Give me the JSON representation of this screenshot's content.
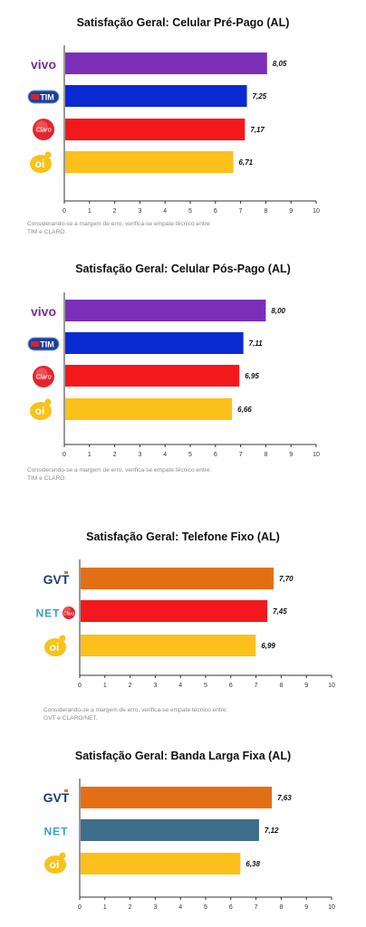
{
  "colors": {
    "vivo": "#7b2fb8",
    "tim": "#0a2ad2",
    "claro": "#f2181c",
    "oi": "#fbc01a",
    "gvt": "#e36f14",
    "net": "#3e6e8a",
    "axis": "#333333",
    "tick_label": "#333333",
    "value_label": "#111111"
  },
  "chart_data": [
    {
      "type": "bar",
      "orientation": "horizontal",
      "title": "Satisfação Geral: Celular Pré-Pago (AL)",
      "categories": [
        "vivo",
        "TIM",
        "Claro",
        "oi"
      ],
      "values": [
        8.05,
        7.25,
        7.17,
        6.71
      ],
      "value_labels": [
        "8,05",
        "7,25",
        "7,17",
        "6,71"
      ],
      "xlim": [
        0,
        10
      ],
      "ticks": [
        "0",
        "1",
        "2",
        "3",
        "4",
        "5",
        "6",
        "7",
        "8",
        "9",
        "10"
      ],
      "grid": false,
      "note": [
        "Considerando-se a margem de erro, verifica-se empate técnico entre:",
        "TIM e  CLARO."
      ]
    },
    {
      "type": "bar",
      "orientation": "horizontal",
      "title": "Satisfação Geral: Celular Pós-Pago (AL)",
      "categories": [
        "vivo",
        "TIM",
        "Claro",
        "oi"
      ],
      "values": [
        8.0,
        7.11,
        6.95,
        6.66
      ],
      "value_labels": [
        "8,00",
        "7,11",
        "6,95",
        "6,66"
      ],
      "xlim": [
        0,
        10
      ],
      "ticks": [
        "0",
        "1",
        "2",
        "3",
        "4",
        "5",
        "6",
        "7",
        "8",
        "9",
        "10"
      ],
      "grid": false,
      "note": [
        "Considerando-se a margem de erro, verifica-se empate técnico entre:",
        "TIM e  CLARO."
      ]
    },
    {
      "type": "bar",
      "orientation": "horizontal",
      "title": "Satisfação Geral: Telefone Fixo (AL)",
      "categories": [
        "GVT",
        "NET Claro",
        "oi"
      ],
      "values": [
        7.7,
        7.45,
        6.99
      ],
      "value_labels": [
        "7,70",
        "7,45",
        "6,99"
      ],
      "xlim": [
        0,
        10
      ],
      "ticks": [
        "0",
        "1",
        "2",
        "3",
        "4",
        "5",
        "6",
        "7",
        "8",
        "9",
        "10"
      ],
      "grid": false,
      "note": [
        "Considerando-se a margem de erro, verifica-se empate técnico entre:",
        "GVT e  CLARO/NET."
      ]
    },
    {
      "type": "bar",
      "orientation": "horizontal",
      "title": "Satisfação Geral: Banda Larga Fixa (AL)",
      "categories": [
        "GVT",
        "NET",
        "oi"
      ],
      "values": [
        7.63,
        7.12,
        6.38
      ],
      "value_labels": [
        "7,63",
        "7,12",
        "6,38"
      ],
      "xlim": [
        0,
        10
      ],
      "ticks": [
        "0",
        "1",
        "2",
        "3",
        "4",
        "5",
        "6",
        "7",
        "8",
        "9",
        "10"
      ],
      "grid": false,
      "note": []
    }
  ],
  "logos": {
    "vivo": "vivo",
    "tim": "TIM",
    "claro": "Claro",
    "oi": "oi",
    "gvt": "GVT",
    "net": "NET"
  }
}
